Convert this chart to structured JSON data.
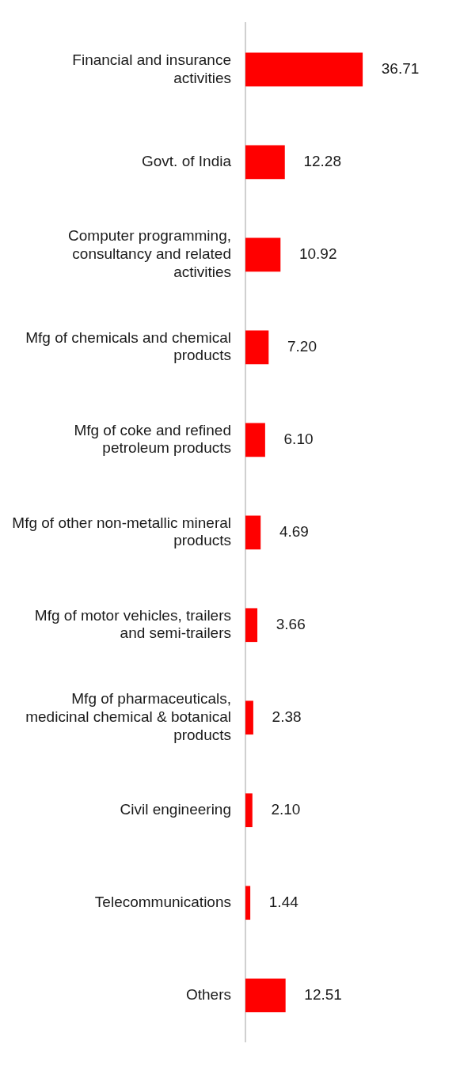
{
  "chart_data": {
    "type": "bar",
    "orientation": "horizontal",
    "tick_labels": "y",
    "categories": [
      "Financial and insurance activities",
      "Govt. of India",
      "Computer programming, consultancy and related activities",
      "Mfg of chemicals and chemical products",
      "Mfg of coke and refined petroleum products",
      "Mfg of other non-metallic mineral products",
      "Mfg of motor vehicles, trailers and semi-trailers",
      "Mfg of pharmaceuticals, medicinal chemical & botanical products",
      "Civil engineering",
      "Telecommunications",
      "Others"
    ],
    "values": [
      36.71,
      12.28,
      10.92,
      7.2,
      6.1,
      4.69,
      3.66,
      2.38,
      2.1,
      1.44,
      12.51
    ],
    "value_labels": [
      "36.71",
      "12.28",
      "10.92",
      "7.20",
      "6.10",
      "4.69",
      "3.66",
      "2.38",
      "2.10",
      "1.44",
      "12.51"
    ],
    "color": "#ff0000"
  }
}
